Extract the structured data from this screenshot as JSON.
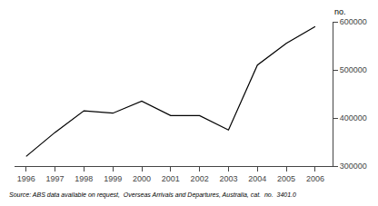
{
  "chart_data": {
    "type": "line",
    "x": [
      1996,
      1997,
      1998,
      1999,
      2000,
      2001,
      2002,
      2003,
      2004,
      2005,
      2006
    ],
    "values": [
      320000,
      370000,
      415000,
      410000,
      435000,
      405000,
      405000,
      375000,
      510000,
      555000,
      590000
    ],
    "color": "#000000",
    "xlim": [
      1995.6,
      2006.6
    ],
    "xticks": [
      1996,
      1997,
      1998,
      1999,
      2000,
      2001,
      2002,
      2003,
      2004,
      2005,
      2006
    ],
    "ylim": [
      300000,
      600000
    ],
    "yticks": [
      300000,
      400000,
      500000,
      600000
    ],
    "ylabel": "no.",
    "annotations": [
      "Source: ABS data available on request,  Overseas Arrivals and Departures, Australia, cat.  no.  3401.0"
    ],
    "grid": false
  }
}
